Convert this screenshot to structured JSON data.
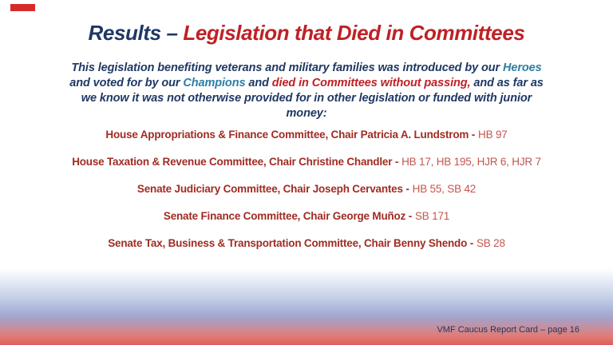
{
  "slide": {
    "title": {
      "prefix": "Results –",
      "highlight": "Legislation that Died in Committees"
    },
    "intro": {
      "part1": "This legislation benefiting veterans and military families was introduced by our",
      "heroes": "Heroes",
      "part2": "and voted for by our",
      "champions": "Champions",
      "part3": "and",
      "died": "died in Committees without passing,",
      "part4": "and as far as we know it was not otherwise provided for in other legislation or funded with junior money:"
    },
    "committees": [
      {
        "label": "House Appropriations & Finance Committee, Chair Patricia A. Lundstrom -",
        "bills": "HB 97"
      },
      {
        "label": "House Taxation & Revenue Committee, Chair Christine Chandler -",
        "bills": "HB 17, HB 195, HJR 6, HJR 7"
      },
      {
        "label": "Senate Judiciary Committee, Chair Joseph Cervantes -",
        "bills": "HB 55, SB 42"
      },
      {
        "label": "Senate Finance Committee, Chair George Muñoz -",
        "bills": "SB 171"
      },
      {
        "label": "Senate Tax, Business & Transportation Committee, Chair Benny Shendo -",
        "bills": "SB 28"
      }
    ],
    "footer": "VMF Caucus Report Card – page 16",
    "colors": {
      "navy": "#1f3864",
      "title_red": "#be2126",
      "teal_accent": "#2e7ea6",
      "committee_red": "#a02c24",
      "bill_red": "#c3564e",
      "accent_bar_red": "#d62b2b",
      "band_blue": "#a9b4d8",
      "band_salmon": "#db5f5c"
    }
  }
}
